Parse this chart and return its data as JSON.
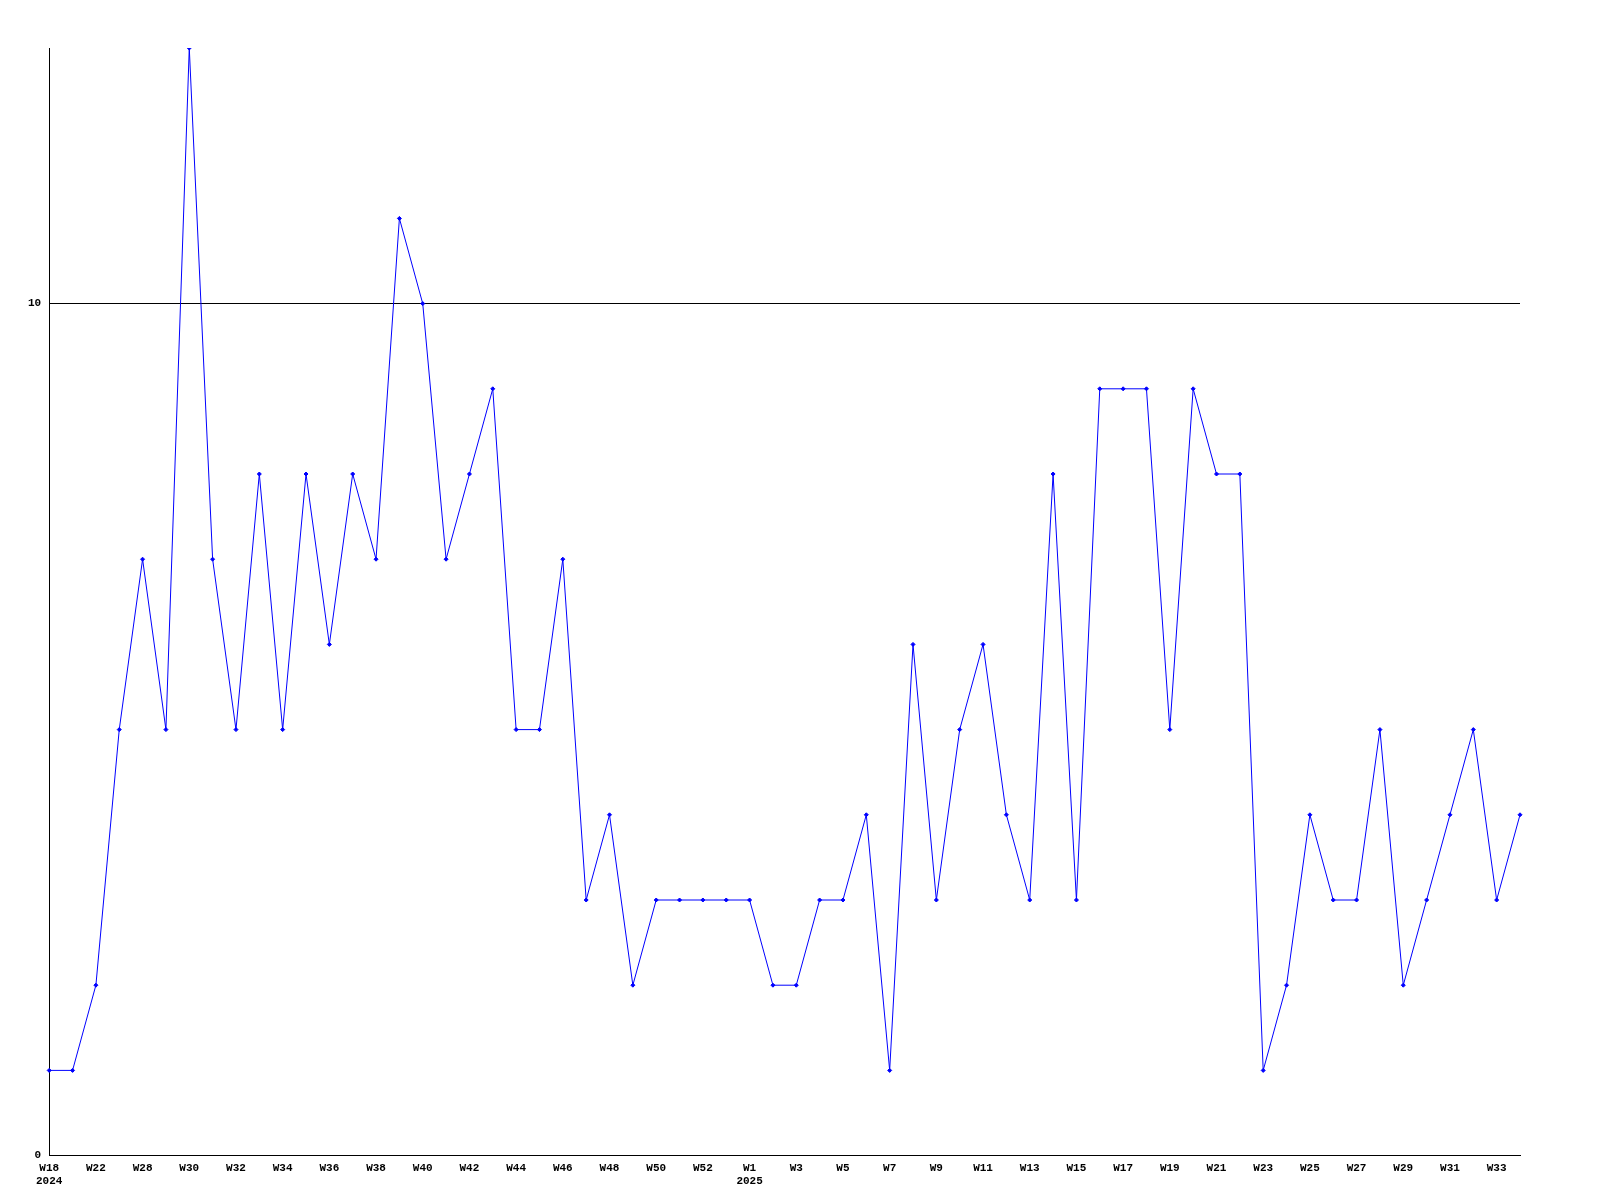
{
  "chart_data": {
    "type": "line",
    "categories": [
      "W18\n2024",
      null,
      "W22",
      null,
      "W28",
      null,
      "W30",
      null,
      "W32",
      null,
      "W34",
      null,
      "W36",
      null,
      "W38",
      null,
      "W40",
      null,
      "W42",
      null,
      "W44",
      null,
      "W46",
      null,
      "W48",
      null,
      "W50",
      null,
      "W52",
      null,
      "W1\n2025",
      null,
      "W3",
      null,
      "W5",
      null,
      "W7",
      null,
      "W9",
      null,
      "W11",
      null,
      "W13",
      null,
      "W15",
      null,
      "W17",
      null,
      "W19",
      null,
      "W21",
      null,
      "W23",
      null,
      "W25",
      null,
      "W27",
      null,
      "W29",
      null,
      "W31",
      null,
      "W33",
      null
    ],
    "series": [
      {
        "color": "#0000ff",
        "values": [
          1,
          1,
          2,
          5,
          7,
          5,
          13,
          7,
          5,
          8,
          5,
          8,
          6,
          8,
          7,
          11,
          10,
          7,
          8,
          9,
          5,
          5,
          7,
          3,
          4,
          2,
          3,
          3,
          3,
          3,
          3,
          2,
          2,
          3,
          3,
          4,
          1,
          6,
          3,
          5,
          6,
          4,
          3,
          8,
          3,
          9,
          9,
          9,
          5,
          9,
          8,
          8,
          1,
          2,
          4,
          3,
          3,
          5,
          2,
          3,
          4,
          5,
          3,
          4
        ]
      }
    ],
    "ylim": [
      0,
      13
    ],
    "yticks": [
      0,
      10
    ],
    "grid": "y",
    "legend": false,
    "marker": "diamond",
    "line_style": "solid"
  }
}
